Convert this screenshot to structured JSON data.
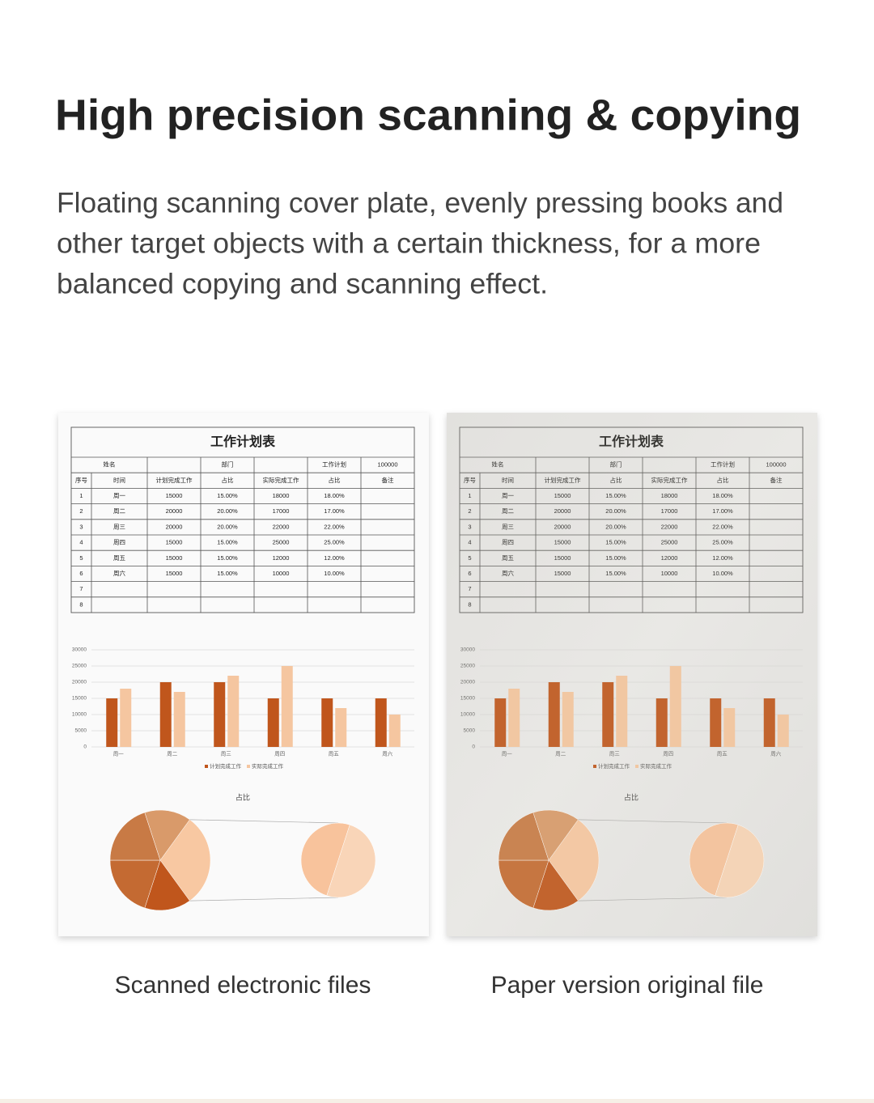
{
  "header": {
    "title": "High precision scanning & copying",
    "paragraph_lines": [
      "Floating scanning cover plate, evenly pressing books and",
      "other target objects with a certain thickness, for a more",
      "balanced copying and scanning effect."
    ]
  },
  "document": {
    "title": "工作计划表",
    "table": {
      "info_row": {
        "name_label": "姓名",
        "dept_label": "部门",
        "plan_label": "工作计划",
        "plan_value": 100000
      },
      "columns": [
        "序号",
        "时间",
        "计划完成工作",
        "占比",
        "实际完成工作",
        "占比",
        "备注"
      ],
      "rows": [
        [
          1,
          "周一",
          15000,
          "15.00%",
          18000,
          "18.00%"
        ],
        [
          2,
          "周二",
          20000,
          "20.00%",
          17000,
          "17.00%"
        ],
        [
          3,
          "周三",
          20000,
          "20.00%",
          22000,
          "22.00%"
        ],
        [
          4,
          "周四",
          15000,
          "15.00%",
          25000,
          "25.00%"
        ],
        [
          5,
          "周五",
          15000,
          "15.00%",
          12000,
          "12.00%"
        ],
        [
          6,
          "周六",
          15000,
          "15.00%",
          10000,
          "10.00%"
        ],
        [
          7
        ],
        [
          8
        ]
      ]
    },
    "bar_chart": {
      "type": "bar",
      "categories": [
        "周一",
        "周二",
        "周三",
        "周四",
        "周五",
        "周六"
      ],
      "series": [
        {
          "name": "计划完成工作",
          "color": "#c0561c",
          "values": [
            15000,
            20000,
            20000,
            15000,
            15000,
            15000
          ]
        },
        {
          "name": "实际完成工作",
          "color": "#f5c6a0",
          "values": [
            18000,
            17000,
            22000,
            25000,
            12000,
            10000
          ]
        }
      ],
      "ylim": [
        0,
        30000
      ],
      "yticks": [
        0,
        5000,
        10000,
        15000,
        20000,
        25000,
        30000
      ],
      "grid": true,
      "legend": "bottom"
    },
    "pie_chart": {
      "type": "pie",
      "title": "占比",
      "values": [
        15,
        20,
        20,
        15
      ],
      "colors": [
        "#c0561c",
        "#c46a32",
        "#c87a45",
        "#d99a6a"
      ],
      "secondary_values": [
        15,
        15
      ],
      "secondary_colors": [
        "#f8c39c",
        "#f9d5b8"
      ],
      "other_color": "#f8c8a2"
    }
  },
  "captions": [
    "Scanned electronic files",
    "Paper version original file"
  ]
}
